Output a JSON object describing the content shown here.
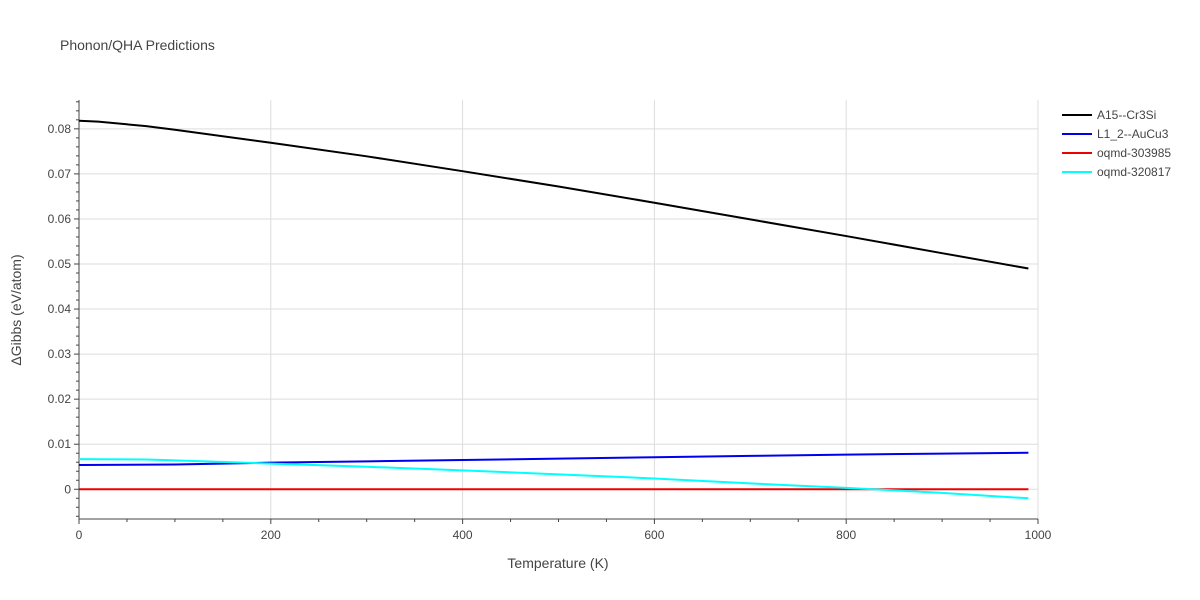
{
  "chart_data": {
    "type": "line",
    "title": "Phonon/QHA Predictions",
    "xlabel": "Temperature (K)",
    "ylabel": "ΔGibbs (eV/atom)",
    "xlim": [
      0,
      1000
    ],
    "ylim": [
      -0.0066,
      0.0864
    ],
    "xticks": [
      0,
      200,
      400,
      600,
      800,
      1000
    ],
    "yticks": [
      0,
      0.01,
      0.02,
      0.03,
      0.04,
      0.05,
      0.06,
      0.07,
      0.08
    ],
    "ytick_labels": [
      "0",
      "0.01",
      "0.02",
      "0.03",
      "0.04",
      "0.05",
      "0.06",
      "0.07",
      "0.08"
    ],
    "grid": true,
    "legend_position": "top-right",
    "series": [
      {
        "name": "A15--Cr3Si",
        "color": "#000000",
        "x": [
          0,
          20,
          70,
          100,
          200,
          300,
          400,
          500,
          600,
          700,
          800,
          900,
          990
        ],
        "y": [
          0.0818,
          0.0816,
          0.0806,
          0.0798,
          0.0769,
          0.0739,
          0.0706,
          0.0672,
          0.0636,
          0.0599,
          0.0562,
          0.0524,
          0.049
        ]
      },
      {
        "name": "L1_2--AuCu3",
        "color": "#0000ee",
        "x": [
          0,
          100,
          200,
          300,
          400,
          500,
          600,
          700,
          800,
          900,
          990
        ],
        "y": [
          0.0054,
          0.0055,
          0.0059,
          0.0062,
          0.0065,
          0.0068,
          0.0071,
          0.0074,
          0.0077,
          0.0079,
          0.0081
        ]
      },
      {
        "name": "oqmd-303985",
        "color": "#ee0000",
        "x": [
          0,
          990
        ],
        "y": [
          0.0,
          0.0
        ]
      },
      {
        "name": "oqmd-320817",
        "color": "#00ffff",
        "x": [
          0,
          70,
          100,
          200,
          300,
          400,
          500,
          600,
          700,
          800,
          900,
          990
        ],
        "y": [
          0.0067,
          0.0066,
          0.0064,
          0.0057,
          0.005,
          0.0042,
          0.0033,
          0.0024,
          0.0013,
          0.0003,
          -0.0008,
          -0.002
        ]
      }
    ]
  }
}
